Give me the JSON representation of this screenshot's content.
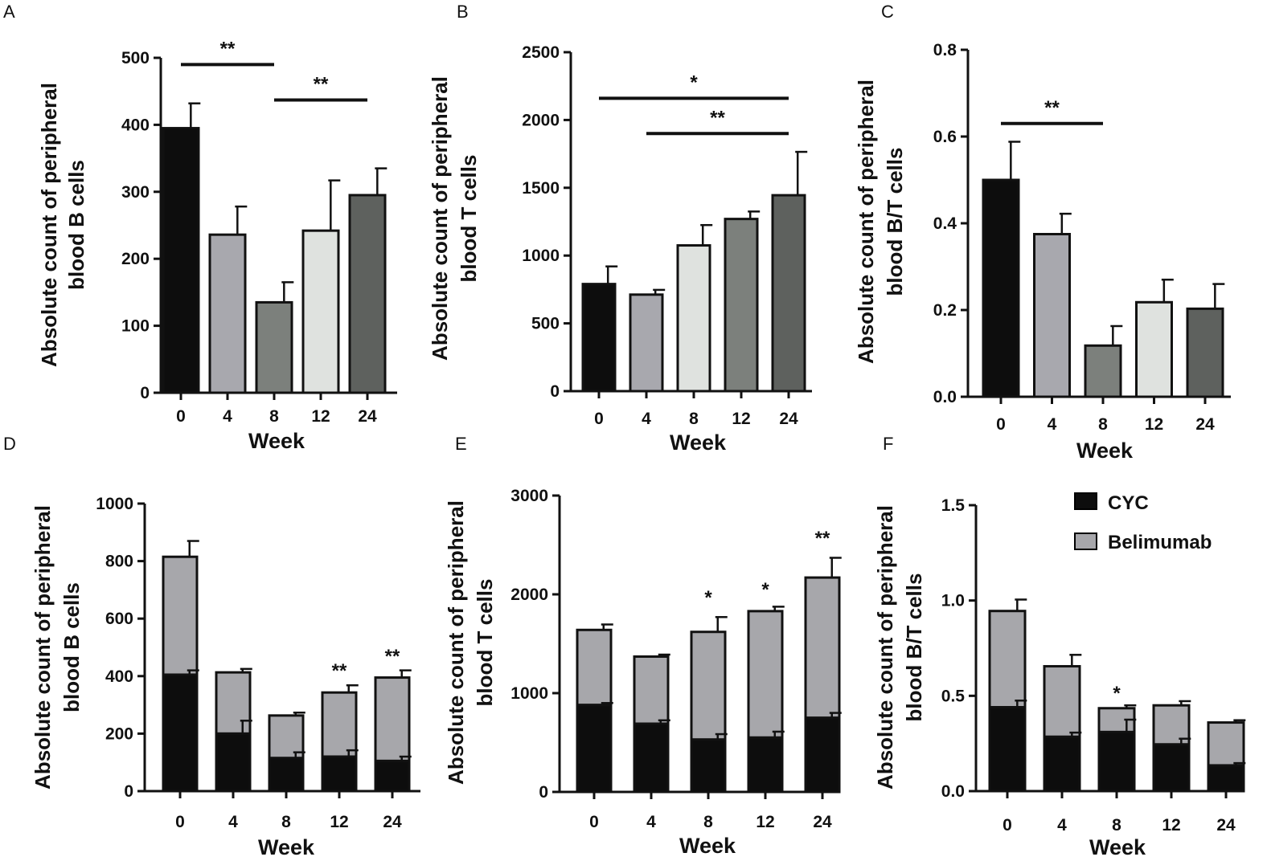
{
  "figure": {
    "palette": {
      "black": "#0d0d0d",
      "mid_gray": "#a8a8ae",
      "dark_gray": "#7c807c",
      "light_gray": "#dfe2df",
      "charcoal": "#5e615e",
      "belimumab_gray": "#a7a7ab"
    }
  },
  "chart_data": [
    {
      "id": "A",
      "panel_letter": "A",
      "type": "bar",
      "xlabel": "Week",
      "ylabel_lines": [
        "Absolute count of peripheral",
        "blood B cells"
      ],
      "categories": [
        "0",
        "4",
        "8",
        "12",
        "24"
      ],
      "values": [
        395,
        236,
        135,
        242,
        295
      ],
      "errors": [
        37,
        42,
        30,
        75,
        40
      ],
      "bar_colors": [
        "black",
        "mid_gray",
        "dark_gray",
        "light_gray",
        "charcoal"
      ],
      "ylim": [
        0,
        500
      ],
      "yticks": [
        0,
        100,
        200,
        300,
        400,
        500
      ],
      "ytick_labels": [
        "0",
        "100",
        "200",
        "300",
        "400",
        "500"
      ],
      "significance_bars": [
        {
          "from": 0,
          "to": 2,
          "label": "**",
          "y": 490
        },
        {
          "from": 2,
          "to": 4,
          "label": "**",
          "y": 437
        }
      ],
      "bar_stars": []
    },
    {
      "id": "B",
      "panel_letter": "B",
      "type": "bar",
      "xlabel": "Week",
      "ylabel_lines": [
        "Absolute count of peripheral",
        "blood T cells"
      ],
      "categories": [
        "0",
        "4",
        "8",
        "12",
        "24"
      ],
      "values": [
        790,
        712,
        1075,
        1270,
        1445
      ],
      "errors": [
        130,
        35,
        150,
        55,
        320
      ],
      "bar_colors": [
        "black",
        "mid_gray",
        "light_gray",
        "dark_gray",
        "charcoal"
      ],
      "ylim": [
        0,
        2500
      ],
      "yticks": [
        0,
        500,
        1000,
        1500,
        2000,
        2500
      ],
      "ytick_labels": [
        "0",
        "500",
        "1000",
        "1500",
        "2000",
        "2500"
      ],
      "significance_bars": [
        {
          "from": 0,
          "to": 4,
          "label": "*",
          "y": 2160
        },
        {
          "from": 1,
          "to": 4,
          "label": "**",
          "y": 1900
        }
      ],
      "bar_stars": []
    },
    {
      "id": "C",
      "panel_letter": "C",
      "type": "bar",
      "xlabel": "Week",
      "ylabel_lines": [
        "Absolute count of peripheral",
        "blood B/T cells"
      ],
      "categories": [
        "0",
        "4",
        "8",
        "12",
        "24"
      ],
      "values": [
        0.5,
        0.375,
        0.118,
        0.218,
        0.203
      ],
      "errors": [
        0.088,
        0.047,
        0.045,
        0.052,
        0.057
      ],
      "bar_colors": [
        "black",
        "mid_gray",
        "dark_gray",
        "light_gray",
        "charcoal"
      ],
      "ylim": [
        0,
        0.8
      ],
      "yticks": [
        0,
        0.2,
        0.4,
        0.6,
        0.8
      ],
      "ytick_labels": [
        "0.0",
        "0.2",
        "0.4",
        "0.6",
        "0.8"
      ],
      "significance_bars": [
        {
          "from": 0,
          "to": 2,
          "label": "**",
          "y": 0.63
        }
      ],
      "bar_stars": []
    },
    {
      "id": "D",
      "panel_letter": "D",
      "type": "stacked_bar",
      "xlabel": "Week",
      "ylabel_lines": [
        "Absolute count of peripheral",
        "blood B cells"
      ],
      "categories": [
        "0",
        "4",
        "8",
        "12",
        "24"
      ],
      "series": [
        {
          "name": "CYC",
          "color_key": "black",
          "values": [
            405,
            200,
            115,
            120,
            105
          ],
          "errors": [
            15,
            45,
            20,
            22,
            15
          ]
        },
        {
          "name": "Belimumab",
          "color_key": "belimumab_gray",
          "values": [
            410,
            213,
            148,
            223,
            290
          ],
          "errors": [
            55,
            12,
            10,
            25,
            25
          ]
        }
      ],
      "ylim": [
        0,
        1000
      ],
      "yticks": [
        0,
        200,
        400,
        600,
        800,
        1000
      ],
      "ytick_labels": [
        "0",
        "200",
        "400",
        "600",
        "800",
        "1000"
      ],
      "significance_bars": [],
      "bar_stars": [
        {
          "index": 3,
          "label": "**",
          "y": 430
        },
        {
          "index": 4,
          "label": "**",
          "y": 480
        }
      ]
    },
    {
      "id": "E",
      "panel_letter": "E",
      "type": "stacked_bar",
      "xlabel": "Week",
      "ylabel_lines": [
        "Absolute count of peripheral",
        "blood T cells"
      ],
      "categories": [
        "0",
        "4",
        "8",
        "12",
        "24"
      ],
      "series": [
        {
          "name": "CYC",
          "color_key": "black",
          "values": [
            880,
            690,
            530,
            550,
            750
          ],
          "errors": [
            20,
            35,
            55,
            60,
            50
          ]
        },
        {
          "name": "Belimumab",
          "color_key": "belimumab_gray",
          "values": [
            760,
            680,
            1090,
            1280,
            1420
          ],
          "errors": [
            55,
            20,
            150,
            45,
            200
          ]
        }
      ],
      "ylim": [
        0,
        3000
      ],
      "yticks": [
        0,
        1000,
        2000,
        3000
      ],
      "ytick_labels": [
        "0",
        "1000",
        "2000",
        "3000"
      ],
      "significance_bars": [],
      "bar_stars": [
        {
          "index": 2,
          "label": "*",
          "y": 2000
        },
        {
          "index": 3,
          "label": "*",
          "y": 2080
        },
        {
          "index": 4,
          "label": "**",
          "y": 2600
        }
      ]
    },
    {
      "id": "F",
      "panel_letter": "F",
      "type": "stacked_bar",
      "xlabel": "Week",
      "ylabel_lines": [
        "Absolute count of peripheral",
        "blood B/T cells"
      ],
      "categories": [
        "0",
        "4",
        "8",
        "12",
        "24"
      ],
      "series": [
        {
          "name": "CYC",
          "color_key": "black",
          "values": [
            0.44,
            0.285,
            0.31,
            0.245,
            0.135
          ],
          "errors": [
            0.035,
            0.022,
            0.065,
            0.03,
            0.012
          ]
        },
        {
          "name": "Belimumab",
          "color_key": "belimumab_gray",
          "values": [
            0.505,
            0.37,
            0.125,
            0.205,
            0.225
          ],
          "errors": [
            0.06,
            0.06,
            0.015,
            0.022,
            0.012
          ]
        }
      ],
      "ylim": [
        0,
        1.5
      ],
      "yticks": [
        0,
        0.5,
        1.0,
        1.5
      ],
      "ytick_labels": [
        "0.0",
        "0.5",
        "1.0",
        "1.5"
      ],
      "significance_bars": [],
      "bar_stars": [
        {
          "index": 2,
          "label": "*",
          "y": 0.53
        }
      ],
      "legend": {
        "placement": "top-right",
        "entries": [
          {
            "label": "CYC",
            "color_key": "black"
          },
          {
            "label": "Belimumab",
            "color_key": "belimumab_gray"
          }
        ]
      }
    }
  ]
}
